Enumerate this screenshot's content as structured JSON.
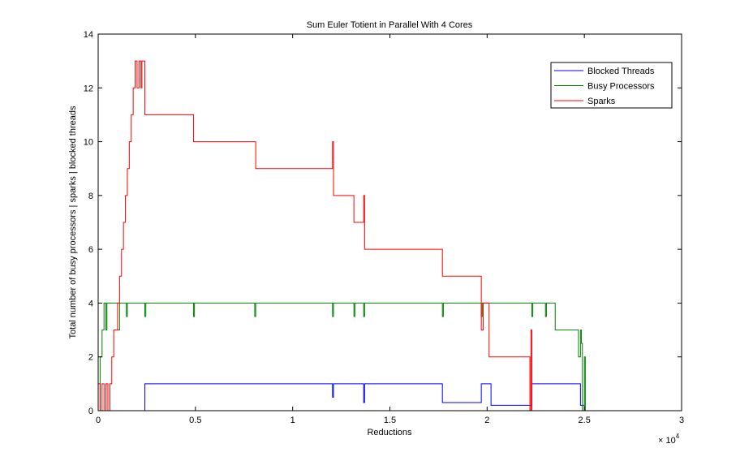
{
  "chart_data": {
    "type": "line",
    "title": "Sum Euler Totient in Parallel With 4 Cores",
    "xlabel": "Reductions",
    "ylabel": "Total number of busy processors | sparks | blocked threads",
    "x_multiplier_label": "× 10",
    "x_multiplier_exponent": "4",
    "xlim": [
      0,
      3
    ],
    "ylim": [
      0,
      14
    ],
    "x_ticks": [
      0,
      0.5,
      1,
      1.5,
      2,
      2.5,
      3
    ],
    "x_tick_labels": [
      "0",
      "0.5",
      "1",
      "1.5",
      "2",
      "2.5",
      "3"
    ],
    "y_ticks": [
      0,
      2,
      4,
      6,
      8,
      10,
      12,
      14
    ],
    "y_tick_labels": [
      "0",
      "2",
      "4",
      "6",
      "8",
      "10",
      "12",
      "14"
    ],
    "grid": false,
    "legend_position": "top-right",
    "series": [
      {
        "name": "Blocked Threads",
        "color": "#0000ff",
        "x": [
          0,
          0.24,
          0.24,
          1.205,
          1.205,
          1.21,
          1.21,
          1.365,
          1.365,
          1.37,
          1.37,
          1.77,
          1.77,
          1.97,
          1.97,
          2.02,
          2.02,
          2.23,
          2.23,
          2.3,
          2.3,
          2.48,
          2.48,
          2.5,
          2.5
        ],
        "y": [
          0,
          0,
          1,
          1,
          0.5,
          0.5,
          1,
          1,
          0.3,
          0.3,
          1,
          1,
          0.3,
          0.3,
          1,
          1,
          0.2,
          0.2,
          1,
          1,
          1,
          1,
          0.2,
          0.2,
          0
        ]
      },
      {
        "name": "Busy Processors",
        "color": "#007f00",
        "x": [
          0,
          0.01,
          0.01,
          0.02,
          0.02,
          0.03,
          0.03,
          0.04,
          0.04,
          0.045,
          0.045,
          0.1,
          0.1,
          0.11,
          0.11,
          0.145,
          0.145,
          0.15,
          0.15,
          0.24,
          0.24,
          0.245,
          0.245,
          0.49,
          0.49,
          0.495,
          0.495,
          0.805,
          0.805,
          0.81,
          0.81,
          1.205,
          1.205,
          1.21,
          1.21,
          1.315,
          1.315,
          1.32,
          1.32,
          1.365,
          1.365,
          1.37,
          1.37,
          1.77,
          1.77,
          1.775,
          1.775,
          1.97,
          1.97,
          1.975,
          1.975,
          2.23,
          2.23,
          2.235,
          2.235,
          2.3,
          2.3,
          2.305,
          2.305,
          2.35,
          2.35,
          2.47,
          2.47,
          2.48,
          2.48,
          2.485,
          2.485,
          2.49,
          2.49,
          2.5,
          2.5,
          2.505,
          2.505
        ],
        "y": [
          0,
          0,
          2,
          2,
          3,
          3,
          4,
          4,
          3,
          3,
          4,
          4,
          3,
          3,
          4,
          4,
          3.5,
          3.5,
          4,
          4,
          3.5,
          3.5,
          4,
          4,
          3.5,
          3.5,
          4,
          4,
          3.5,
          3.5,
          4,
          4,
          3.5,
          3.5,
          4,
          4,
          3.5,
          3.5,
          4,
          4,
          3.5,
          3.5,
          4,
          4,
          3.5,
          3.5,
          4,
          4,
          3.5,
          3.5,
          4,
          4,
          3.5,
          3.5,
          4,
          4,
          3.5,
          3.5,
          4,
          4,
          3,
          3,
          2,
          2,
          3,
          3,
          2.5,
          2.5,
          0,
          0,
          2,
          2,
          0
        ]
      },
      {
        "name": "Sparks",
        "color": "#ff0000",
        "x": [
          0,
          0.01,
          0.01,
          0.02,
          0.02,
          0.03,
          0.03,
          0.04,
          0.04,
          0.05,
          0.05,
          0.06,
          0.06,
          0.07,
          0.07,
          0.08,
          0.08,
          0.1,
          0.1,
          0.11,
          0.11,
          0.12,
          0.12,
          0.13,
          0.13,
          0.14,
          0.14,
          0.15,
          0.15,
          0.16,
          0.16,
          0.17,
          0.17,
          0.18,
          0.18,
          0.19,
          0.19,
          0.2,
          0.2,
          0.21,
          0.21,
          0.22,
          0.22,
          0.225,
          0.225,
          0.24,
          0.24,
          0.49,
          0.49,
          0.81,
          0.81,
          1.205,
          1.205,
          1.21,
          1.21,
          1.315,
          1.315,
          1.365,
          1.365,
          1.37,
          1.37,
          1.77,
          1.77,
          1.97,
          1.97,
          1.98,
          1.98,
          2.01,
          2.01,
          2.22,
          2.22,
          2.225,
          2.225,
          2.23,
          2.23,
          2.3
        ],
        "y": [
          1,
          1,
          0,
          0,
          1,
          1,
          0,
          0,
          1,
          1,
          0,
          0,
          1,
          1,
          2,
          2,
          3,
          3,
          4,
          4,
          5,
          5,
          6,
          6,
          7,
          7,
          8,
          8,
          9,
          9,
          10,
          10,
          11,
          11,
          12,
          12,
          13,
          13,
          12,
          12,
          13,
          13,
          12,
          12,
          13,
          13,
          11,
          11,
          10,
          10,
          9,
          9,
          10,
          10,
          8,
          8,
          7,
          7,
          8,
          8,
          6,
          6,
          5,
          5,
          3,
          3,
          4,
          4,
          2,
          2,
          0,
          0,
          3,
          3,
          0,
          0
        ]
      }
    ]
  }
}
